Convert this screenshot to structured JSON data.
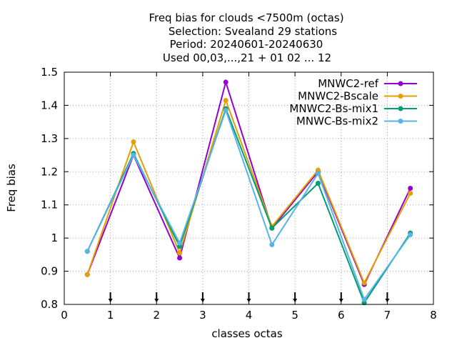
{
  "chart_data": {
    "type": "line",
    "title_lines": [
      "Freq bias  for clouds <7500m (octas)",
      "Selection: Svealand     29 stations",
      "Period: 20240601-20240630",
      "Used 00,03,...,21 + 01 02 ... 12"
    ],
    "xlabel": "classes octas",
    "ylabel": "Freq bias",
    "xlim": [
      0,
      8
    ],
    "ylim": [
      0.8,
      1.5
    ],
    "x_ticks": [
      "0",
      "1",
      "2",
      "3",
      "4",
      "5",
      "6",
      "7",
      "8"
    ],
    "y_ticks": [
      "0.8",
      "0.9",
      "1",
      "1.1",
      "1.2",
      "1.3",
      "1.4",
      "1.5"
    ],
    "grid": true,
    "legend_position": "top-right",
    "x": [
      0.5,
      1.5,
      2.5,
      3.5,
      4.5,
      5.5,
      6.5,
      7.5
    ],
    "bottom_markers_x": [
      1,
      2,
      3,
      4,
      5,
      6,
      7
    ],
    "series": [
      {
        "name": "MNWC2-ref",
        "color": "#9400d3",
        "marker": "circle",
        "values": [
          0.89,
          1.25,
          0.94,
          1.47,
          1.03,
          1.2,
          0.86,
          1.15
        ]
      },
      {
        "name": "MNWC2-Bscale",
        "color": "#e69f00",
        "marker": "circle",
        "values": [
          0.89,
          1.29,
          0.955,
          1.415,
          1.035,
          1.205,
          0.865,
          1.135
        ]
      },
      {
        "name": "MNWC2-Bs-mix1",
        "color": "#009e73",
        "marker": "circle",
        "values": [
          0.96,
          1.255,
          0.975,
          1.39,
          1.03,
          1.165,
          0.805,
          1.015
        ]
      },
      {
        "name": "MNWC-Bs-mix2",
        "color": "#56b4e9",
        "marker": "circle",
        "values": [
          0.96,
          1.25,
          0.985,
          1.385,
          0.98,
          1.195,
          0.815,
          1.01
        ]
      }
    ]
  }
}
